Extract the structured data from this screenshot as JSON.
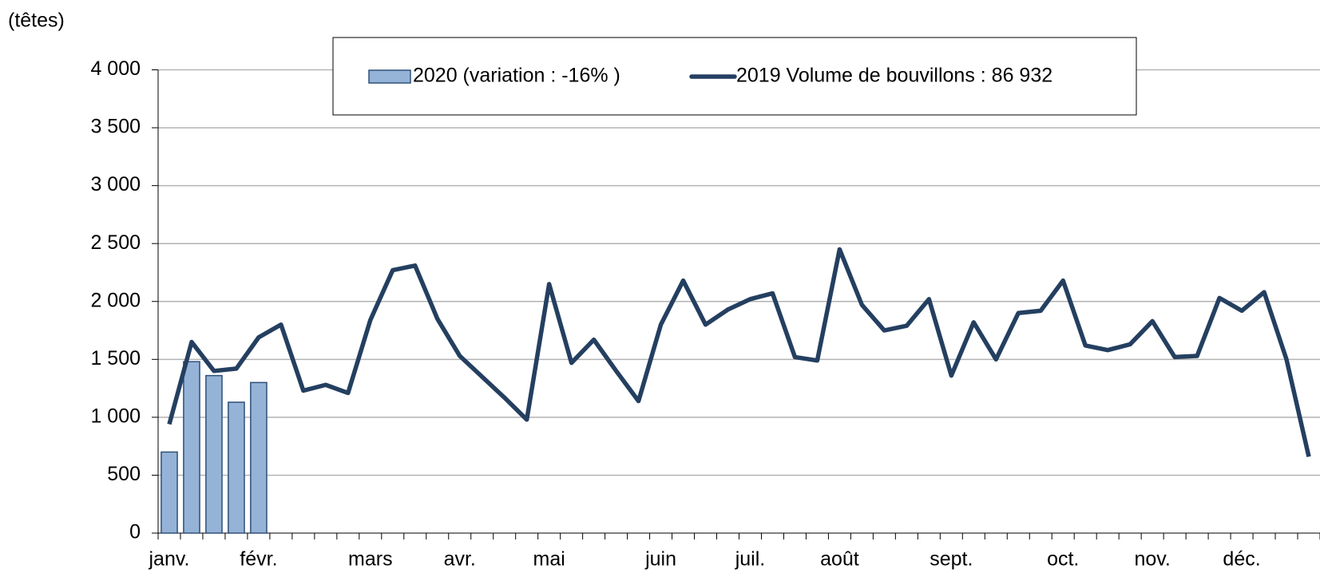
{
  "chart_data": {
    "type": "bar_line",
    "y_axis_label": "(têtes)",
    "categories": [
      "janv.",
      null,
      null,
      null,
      "févr.",
      null,
      null,
      null,
      null,
      "mars",
      null,
      null,
      null,
      "avr.",
      null,
      null,
      null,
      "mai",
      null,
      null,
      null,
      null,
      "juin",
      null,
      null,
      null,
      "juil.",
      null,
      null,
      null,
      "août",
      null,
      null,
      null,
      null,
      "sept.",
      null,
      null,
      null,
      null,
      "oct.",
      null,
      null,
      null,
      "nov.",
      null,
      null,
      null,
      "déc.",
      null,
      null,
      null
    ],
    "series": [
      {
        "name": "2020 (variation : -16% )",
        "type": "bar",
        "color": "#95b3d7",
        "edge_color": "#2e5078",
        "values": [
          700,
          1480,
          1360,
          1130,
          1300,
          null,
          null,
          null,
          null,
          null,
          null,
          null,
          null,
          null,
          null,
          null,
          null,
          null,
          null,
          null,
          null,
          null,
          null,
          null,
          null,
          null,
          null,
          null,
          null,
          null,
          null,
          null,
          null,
          null,
          null,
          null,
          null,
          null,
          null,
          null,
          null,
          null,
          null,
          null,
          null,
          null,
          null,
          null,
          null,
          null,
          null,
          null
        ]
      },
      {
        "name": "2019 Volume de bouvillons : 86 932",
        "type": "line",
        "color": "#243f60",
        "values": [
          940,
          1650,
          1400,
          1420,
          1690,
          1800,
          1230,
          1280,
          1210,
          1840,
          2270,
          2310,
          1850,
          1530,
          1350,
          1170,
          980,
          2150,
          1470,
          1670,
          1400,
          1140,
          1800,
          2180,
          1800,
          1930,
          2020,
          2070,
          1520,
          1490,
          2450,
          1970,
          1750,
          1790,
          2020,
          1360,
          1820,
          1500,
          1900,
          1920,
          2180,
          1620,
          1580,
          1630,
          1830,
          1520,
          1530,
          2030,
          1920,
          2080,
          1500,
          660
        ]
      }
    ],
    "ylim": [
      0,
      4000
    ],
    "yticks": [
      0,
      500,
      {
        "value": 1000,
        "label": "1 000"
      },
      {
        "value": 1500,
        "label": "1 500"
      },
      {
        "value": 2000,
        "label": "2 000"
      },
      {
        "value": 2500,
        "label": "2 500"
      },
      {
        "value": 3000,
        "label": "3 000"
      },
      {
        "value": 3500,
        "label": "3 500"
      },
      {
        "value": 4000,
        "label": "4 000"
      }
    ],
    "grid": true
  }
}
